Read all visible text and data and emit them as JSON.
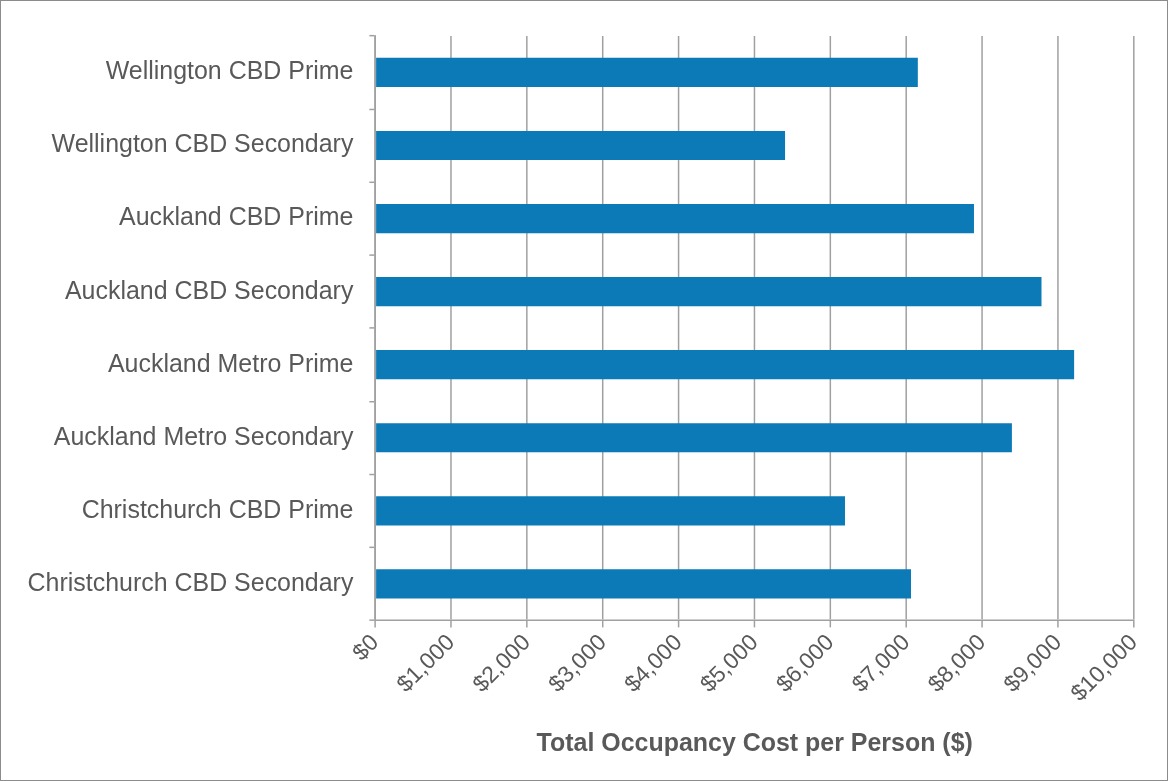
{
  "chart_data": {
    "type": "bar",
    "orientation": "horizontal",
    "categories": [
      "Wellington CBD Prime",
      "Wellington CBD Secondary",
      "Auckland CBD Prime",
      "Auckland CBD Secondary",
      "Auckland Metro Prime",
      "Auckland Metro Secondary",
      "Christchurch CBD Prime",
      "Christchurch CBD Secondary"
    ],
    "values": [
      7150,
      5400,
      7890,
      8780,
      9210,
      8390,
      6190,
      7060
    ],
    "color": "#0b7ab7",
    "xlabel": "Total Occupancy Cost per Person ($)",
    "xlim": [
      0,
      10000
    ],
    "xticks": [
      {
        "value": 0,
        "label": "$0"
      },
      {
        "value": 1000,
        "label": "$1,000"
      },
      {
        "value": 2000,
        "label": "$2,000"
      },
      {
        "value": 3000,
        "label": "$3,000"
      },
      {
        "value": 4000,
        "label": "$4,000"
      },
      {
        "value": 5000,
        "label": "$5,000"
      },
      {
        "value": 6000,
        "label": "$6,000"
      },
      {
        "value": 7000,
        "label": "$7,000"
      },
      {
        "value": 8000,
        "label": "$8,000"
      },
      {
        "value": 9000,
        "label": "$9,000"
      },
      {
        "value": 10000,
        "label": "$10,000"
      }
    ],
    "grid": "x"
  }
}
